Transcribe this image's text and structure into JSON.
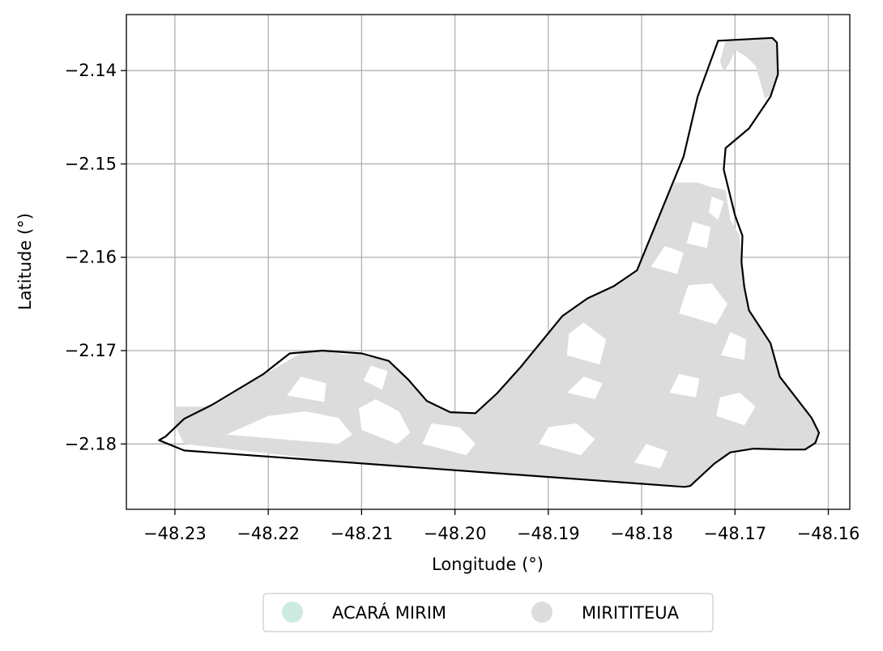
{
  "chart_data": {
    "type": "map",
    "xlabel": "Longitude (°)",
    "ylabel": "Latitude (°)",
    "xlim": [
      -48.2352,
      -48.1577
    ],
    "ylim": [
      -2.187,
      -2.134
    ],
    "grid": true,
    "x_ticks": [
      -48.23,
      -48.22,
      -48.21,
      -48.2,
      -48.19,
      -48.18,
      -48.17,
      -48.16
    ],
    "x_tick_labels": [
      "−48.23",
      "−48.22",
      "−48.21",
      "−48.20",
      "−48.19",
      "−48.18",
      "−48.17",
      "−48.16"
    ],
    "y_ticks": [
      -2.14,
      -2.15,
      -2.16,
      -2.17,
      -2.18
    ],
    "y_tick_labels": [
      "−2.14",
      "−2.15",
      "−2.16",
      "−2.17",
      "−2.18"
    ],
    "legend_position": "bottom-center",
    "legend": [
      {
        "label": "ACARÁ MIRIM",
        "color": "#cdeade"
      },
      {
        "label": "MIRITITEUA",
        "color": "#dcdcdc"
      }
    ],
    "boundary": [
      [
        -48.2317,
        -2.1796
      ],
      [
        -48.231,
        -2.1792
      ],
      [
        -48.229,
        -2.1773
      ],
      [
        -48.226,
        -2.1758
      ],
      [
        -48.2205,
        -2.1725
      ],
      [
        -48.2177,
        -2.1703
      ],
      [
        -48.2142,
        -2.17
      ],
      [
        -48.21,
        -2.1703
      ],
      [
        -48.2071,
        -2.1711
      ],
      [
        -48.205,
        -2.1731
      ],
      [
        -48.203,
        -2.1754
      ],
      [
        -48.2005,
        -2.1766
      ],
      [
        -48.1978,
        -2.1767
      ],
      [
        -48.1955,
        -2.1746
      ],
      [
        -48.193,
        -2.1718
      ],
      [
        -48.1885,
        -2.1663
      ],
      [
        -48.1858,
        -2.1644
      ],
      [
        -48.183,
        -2.1631
      ],
      [
        -48.1805,
        -2.1614
      ],
      [
        -48.1755,
        -2.1492
      ],
      [
        -48.174,
        -2.1428
      ],
      [
        -48.1718,
        -2.1368
      ],
      [
        -48.166,
        -2.1365
      ],
      [
        -48.1655,
        -2.137
      ],
      [
        -48.1654,
        -2.1404
      ],
      [
        -48.1662,
        -2.1428
      ],
      [
        -48.1685,
        -2.1462
      ],
      [
        -48.171,
        -2.1483
      ],
      [
        -48.1712,
        -2.1506
      ],
      [
        -48.17,
        -2.1555
      ],
      [
        -48.1692,
        -2.1577
      ],
      [
        -48.1693,
        -2.1605
      ],
      [
        -48.169,
        -2.1632
      ],
      [
        -48.1685,
        -2.1657
      ],
      [
        -48.1662,
        -2.1692
      ],
      [
        -48.1652,
        -2.1728
      ],
      [
        -48.1618,
        -2.1772
      ],
      [
        -48.161,
        -2.1788
      ],
      [
        -48.1614,
        -2.1799
      ],
      [
        -48.1625,
        -2.1806
      ],
      [
        -48.1645,
        -2.1806
      ],
      [
        -48.168,
        -2.1805
      ],
      [
        -48.1705,
        -2.1809
      ],
      [
        -48.1722,
        -2.1821
      ],
      [
        -48.1748,
        -2.1845
      ],
      [
        -48.1754,
        -2.1846
      ],
      [
        -48.229,
        -2.1807
      ],
      [
        -48.2317,
        -2.1796
      ]
    ],
    "regions": [
      {
        "name": "MIRITITEUA",
        "color": "#dcdcdc",
        "polygon": [
          [
            -48.23,
            -2.176
          ],
          [
            -48.226,
            -2.176
          ],
          [
            -48.2205,
            -2.1726
          ],
          [
            -48.216,
            -2.17
          ],
          [
            -48.214,
            -2.17
          ],
          [
            -48.212,
            -2.1704
          ],
          [
            -48.2103,
            -2.1704
          ],
          [
            -48.2085,
            -2.1708
          ],
          [
            -48.2071,
            -2.1711
          ],
          [
            -48.205,
            -2.1731
          ],
          [
            -48.203,
            -2.1754
          ],
          [
            -48.2005,
            -2.1766
          ],
          [
            -48.1978,
            -2.1767
          ],
          [
            -48.1955,
            -2.1746
          ],
          [
            -48.193,
            -2.1718
          ],
          [
            -48.1885,
            -2.1663
          ],
          [
            -48.1858,
            -2.1644
          ],
          [
            -48.183,
            -2.1631
          ],
          [
            -48.1805,
            -2.1614
          ],
          [
            -48.1765,
            -2.152
          ],
          [
            -48.174,
            -2.152
          ],
          [
            -48.1725,
            -2.1525
          ],
          [
            -48.171,
            -2.1528
          ],
          [
            -48.1705,
            -2.156
          ],
          [
            -48.1695,
            -2.1577
          ],
          [
            -48.1693,
            -2.1605
          ],
          [
            -48.169,
            -2.1632
          ],
          [
            -48.1685,
            -2.1657
          ],
          [
            -48.1662,
            -2.1692
          ],
          [
            -48.1652,
            -2.1728
          ],
          [
            -48.1618,
            -2.1772
          ],
          [
            -48.161,
            -2.1788
          ],
          [
            -48.1614,
            -2.1799
          ],
          [
            -48.1625,
            -2.1806
          ],
          [
            -48.1645,
            -2.1806
          ],
          [
            -48.168,
            -2.1805
          ],
          [
            -48.1705,
            -2.1809
          ],
          [
            -48.1722,
            -2.1821
          ],
          [
            -48.1748,
            -2.1845
          ],
          [
            -48.188,
            -2.1836
          ],
          [
            -48.199,
            -2.1828
          ],
          [
            -48.213,
            -2.1818
          ],
          [
            -48.229,
            -2.18
          ],
          [
            -48.23,
            -2.178
          ]
        ]
      },
      {
        "name": "MIRITITEUA",
        "color": "#dcdcdc",
        "polygon": [
          [
            -48.171,
            -2.1368
          ],
          [
            -48.166,
            -2.1365
          ],
          [
            -48.1655,
            -2.137
          ],
          [
            -48.1654,
            -2.1404
          ],
          [
            -48.166,
            -2.1425
          ],
          [
            -48.1668,
            -2.143
          ],
          [
            -48.1672,
            -2.1415
          ],
          [
            -48.1678,
            -2.1395
          ],
          [
            -48.1688,
            -2.1385
          ],
          [
            -48.17,
            -2.1378
          ],
          [
            -48.1705,
            -2.139
          ],
          [
            -48.1712,
            -2.1402
          ],
          [
            -48.1716,
            -2.139
          ]
        ]
      }
    ],
    "gaps": [
      [
        [
          -48.2245,
          -2.179
        ],
        [
          -48.2125,
          -2.18
        ],
        [
          -48.211,
          -2.179
        ],
        [
          -48.2125,
          -2.1772
        ],
        [
          -48.216,
          -2.1765
        ],
        [
          -48.22,
          -2.177
        ]
      ],
      [
        [
          -48.2188,
          -2.1785
        ],
        [
          -48.215,
          -2.179
        ],
        [
          -48.2148,
          -2.1772
        ],
        [
          -48.2175,
          -2.1768
        ]
      ],
      [
        [
          -48.218,
          -2.1748
        ],
        [
          -48.214,
          -2.1755
        ],
        [
          -48.2138,
          -2.1735
        ],
        [
          -48.2165,
          -2.1728
        ]
      ],
      [
        [
          -48.21,
          -2.1785
        ],
        [
          -48.2062,
          -2.18
        ],
        [
          -48.2048,
          -2.1788
        ],
        [
          -48.206,
          -2.1765
        ],
        [
          -48.2085,
          -2.1752
        ],
        [
          -48.2103,
          -2.1762
        ]
      ],
      [
        [
          -48.2098,
          -2.1732
        ],
        [
          -48.2078,
          -2.1742
        ],
        [
          -48.2072,
          -2.1722
        ],
        [
          -48.209,
          -2.1716
        ]
      ],
      [
        [
          -48.2035,
          -2.18
        ],
        [
          -48.1988,
          -2.1812
        ],
        [
          -48.1978,
          -2.18
        ],
        [
          -48.1995,
          -2.1782
        ],
        [
          -48.2025,
          -2.1778
        ]
      ],
      [
        [
          -48.191,
          -2.18
        ],
        [
          -48.1865,
          -2.1812
        ],
        [
          -48.185,
          -2.1795
        ],
        [
          -48.187,
          -2.1778
        ],
        [
          -48.19,
          -2.1782
        ]
      ],
      [
        [
          -48.188,
          -2.1745
        ],
        [
          -48.185,
          -2.1752
        ],
        [
          -48.1842,
          -2.1735
        ],
        [
          -48.1862,
          -2.1728
        ]
      ],
      [
        [
          -48.188,
          -2.1705
        ],
        [
          -48.1845,
          -2.1715
        ],
        [
          -48.1838,
          -2.1688
        ],
        [
          -48.1862,
          -2.167
        ],
        [
          -48.1878,
          -2.1682
        ]
      ],
      [
        [
          -48.1808,
          -2.182
        ],
        [
          -48.178,
          -2.1826
        ],
        [
          -48.1772,
          -2.1808
        ],
        [
          -48.1795,
          -2.18
        ]
      ],
      [
        [
          -48.177,
          -2.1745
        ],
        [
          -48.1742,
          -2.175
        ],
        [
          -48.1738,
          -2.173
        ],
        [
          -48.176,
          -2.1725
        ]
      ],
      [
        [
          -48.176,
          -2.166
        ],
        [
          -48.172,
          -2.1672
        ],
        [
          -48.1708,
          -2.165
        ],
        [
          -48.1725,
          -2.1628
        ],
        [
          -48.175,
          -2.163
        ]
      ],
      [
        [
          -48.172,
          -2.177
        ],
        [
          -48.169,
          -2.178
        ],
        [
          -48.1678,
          -2.176
        ],
        [
          -48.1695,
          -2.1745
        ],
        [
          -48.1716,
          -2.175
        ]
      ],
      [
        [
          -48.1715,
          -2.1705
        ],
        [
          -48.169,
          -2.171
        ],
        [
          -48.1688,
          -2.1688
        ],
        [
          -48.1705,
          -2.168
        ]
      ],
      [
        [
          -48.179,
          -2.161
        ],
        [
          -48.1762,
          -2.1618
        ],
        [
          -48.1755,
          -2.1595
        ],
        [
          -48.1775,
          -2.1588
        ]
      ],
      [
        [
          -48.1752,
          -2.1585
        ],
        [
          -48.173,
          -2.159
        ],
        [
          -48.1726,
          -2.1568
        ],
        [
          -48.1745,
          -2.1562
        ]
      ],
      [
        [
          -48.1718,
          -2.156
        ],
        [
          -48.1712,
          -2.154
        ],
        [
          -48.1725,
          -2.1535
        ],
        [
          -48.1728,
          -2.1552
        ]
      ]
    ]
  }
}
